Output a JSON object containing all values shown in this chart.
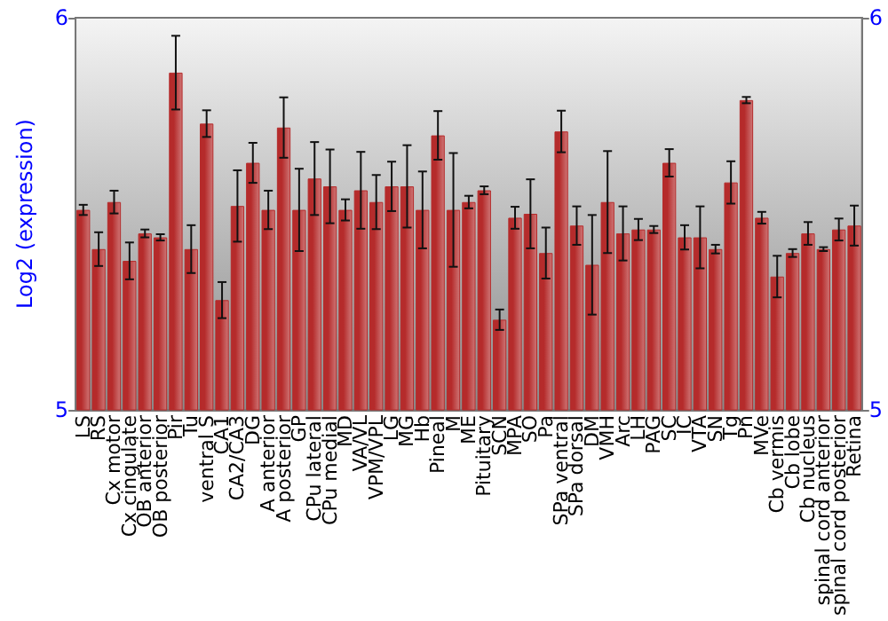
{
  "chart_data": {
    "type": "bar",
    "ylabel": "Log2 (expression)",
    "categories": [
      "LS",
      "RS",
      "Cx motor",
      "Cx cingulate",
      "OB anterior",
      "OB posterior",
      "Pir",
      "Tu",
      "ventral S",
      "CA1",
      "CA2/CA3",
      "DG",
      "A anterior",
      "A posterior",
      "GP",
      "CPu lateral",
      "CPu medial",
      "MD",
      "VA/VL",
      "VPM/VPL",
      "LG",
      "MG",
      "Hb",
      "Pineal",
      "M",
      "ME",
      "Pituitary",
      "SCN",
      "MPA",
      "SO",
      "Pa",
      "SPa ventral",
      "SPa dorsal",
      "DM",
      "VMH",
      "Arc",
      "LH",
      "PAG",
      "SC",
      "IC",
      "VTA",
      "SN",
      "Tg",
      "Pn",
      "MVe",
      "Cb vermis",
      "Cb lobe",
      "Cb nucleus",
      "spinal cord anterior",
      "spinal cord posterior",
      "Retina"
    ],
    "series": [
      {
        "color": "#b52b2b",
        "values": [
          5.51,
          5.41,
          5.53,
          5.38,
          5.45,
          5.44,
          5.86,
          5.41,
          5.73,
          5.28,
          5.52,
          5.63,
          5.51,
          5.72,
          5.51,
          5.59,
          5.57,
          5.51,
          5.56,
          5.53,
          5.57,
          5.57,
          5.51,
          5.7,
          5.51,
          5.53,
          5.56,
          5.23,
          5.49,
          5.5,
          5.4,
          5.71,
          5.47,
          5.37,
          5.53,
          5.45,
          5.46,
          5.46,
          5.63,
          5.44,
          5.44,
          5.41,
          5.58,
          5.79,
          5.49,
          5.34,
          5.4,
          5.45,
          5.41,
          5.46,
          5.47
        ],
        "errors": [
          0.013,
          0.043,
          0.029,
          0.047,
          0.01,
          0.008,
          0.094,
          0.061,
          0.034,
          0.046,
          0.091,
          0.051,
          0.049,
          0.077,
          0.105,
          0.093,
          0.094,
          0.027,
          0.098,
          0.069,
          0.063,
          0.105,
          0.098,
          0.062,
          0.145,
          0.016,
          0.01,
          0.026,
          0.028,
          0.088,
          0.065,
          0.053,
          0.049,
          0.127,
          0.13,
          0.069,
          0.027,
          0.009,
          0.035,
          0.031,
          0.079,
          0.011,
          0.054,
          0.008,
          0.015,
          0.053,
          0.01,
          0.029,
          0.005,
          0.028,
          0.051
        ]
      }
    ],
    "ylim": [
      5,
      6
    ],
    "yticks": [
      5,
      6
    ],
    "y2lim": [
      5,
      6
    ],
    "y2ticks": [
      5,
      6
    ]
  }
}
